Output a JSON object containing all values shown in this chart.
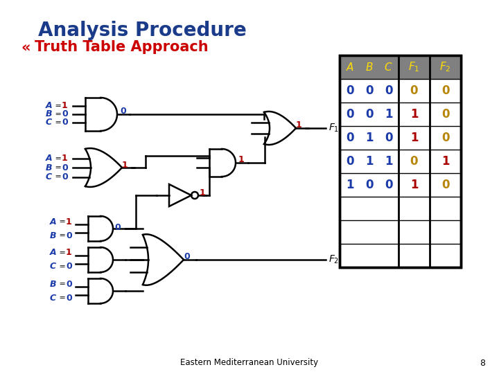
{
  "title": "Analysis Procedure",
  "title_color": "#1a3a8a",
  "bullet_text": "Truth Table Approach",
  "bullet_color": "#cc0000",
  "bg_color": "#ffffff",
  "footer_text": "Eastern Mediterranean University",
  "page_number": "8",
  "table_header_bg": "#808080",
  "table_header_fg": "#ffdd00",
  "table_abc_color": "#1a3aaa",
  "table_rows": [
    {
      "abc": [
        0,
        0,
        0
      ],
      "f1": 0,
      "f2": 0,
      "f1_color": "#b8860b",
      "f2_color": "#b8860b"
    },
    {
      "abc": [
        0,
        0,
        1
      ],
      "f1": 1,
      "f2": 0,
      "f1_color": "#aa0000",
      "f2_color": "#b8860b"
    },
    {
      "abc": [
        0,
        1,
        0
      ],
      "f1": 1,
      "f2": 0,
      "f1_color": "#aa0000",
      "f2_color": "#b8860b"
    },
    {
      "abc": [
        0,
        1,
        1
      ],
      "f1": 0,
      "f2": 1,
      "f1_color": "#b8860b",
      "f2_color": "#aa0000"
    },
    {
      "abc": [
        1,
        0,
        0
      ],
      "f1": 1,
      "f2": 0,
      "f1_color": "#aa0000",
      "f2_color": "#b8860b"
    }
  ],
  "total_data_rows": 8,
  "lw": 1.8
}
